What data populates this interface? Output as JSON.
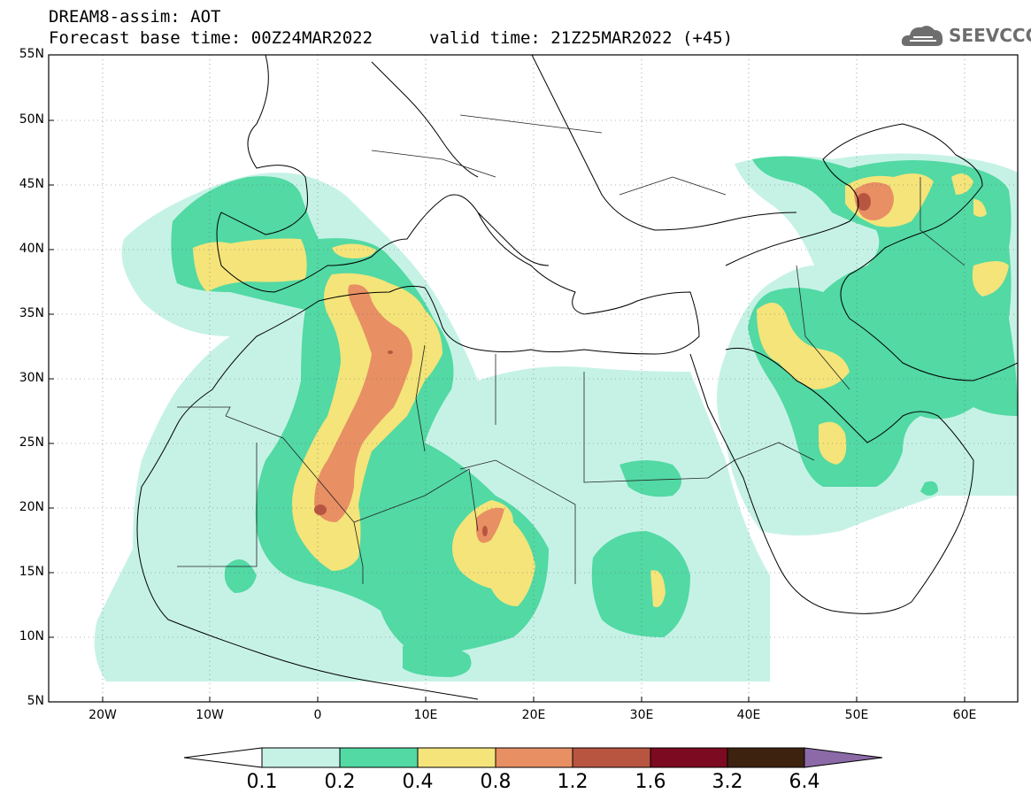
{
  "header": {
    "title": "DREAM8-assim: AOT",
    "base_time": "Forecast base time: 00Z24MAR2022",
    "valid_time": "valid time: 21Z25MAR2022 (+45)"
  },
  "logo": {
    "text": "SEEVCCC",
    "icon": "cloud-icon"
  },
  "map": {
    "lat_labels": [
      "55N",
      "50N",
      "45N",
      "40N",
      "35N",
      "30N",
      "25N",
      "20N",
      "15N",
      "10N",
      "5N"
    ],
    "lon_labels": [
      "20W",
      "10W",
      "0",
      "10E",
      "20E",
      "30E",
      "40E",
      "50E",
      "60E"
    ],
    "lon_range": [
      -25,
      65
    ],
    "lat_range": [
      5,
      55
    ],
    "field": "AOT"
  },
  "colorbar": {
    "labels": [
      "0.1",
      "0.2",
      "0.4",
      "0.8",
      "1.2",
      "1.6",
      "3.2",
      "6.4"
    ],
    "colors": [
      "#ffffff",
      "#c6f2e6",
      "#52d9a4",
      "#f4e47a",
      "#e88f64",
      "#b85540",
      "#7c0a20",
      "#3d2210",
      "#8c6aa8"
    ]
  }
}
